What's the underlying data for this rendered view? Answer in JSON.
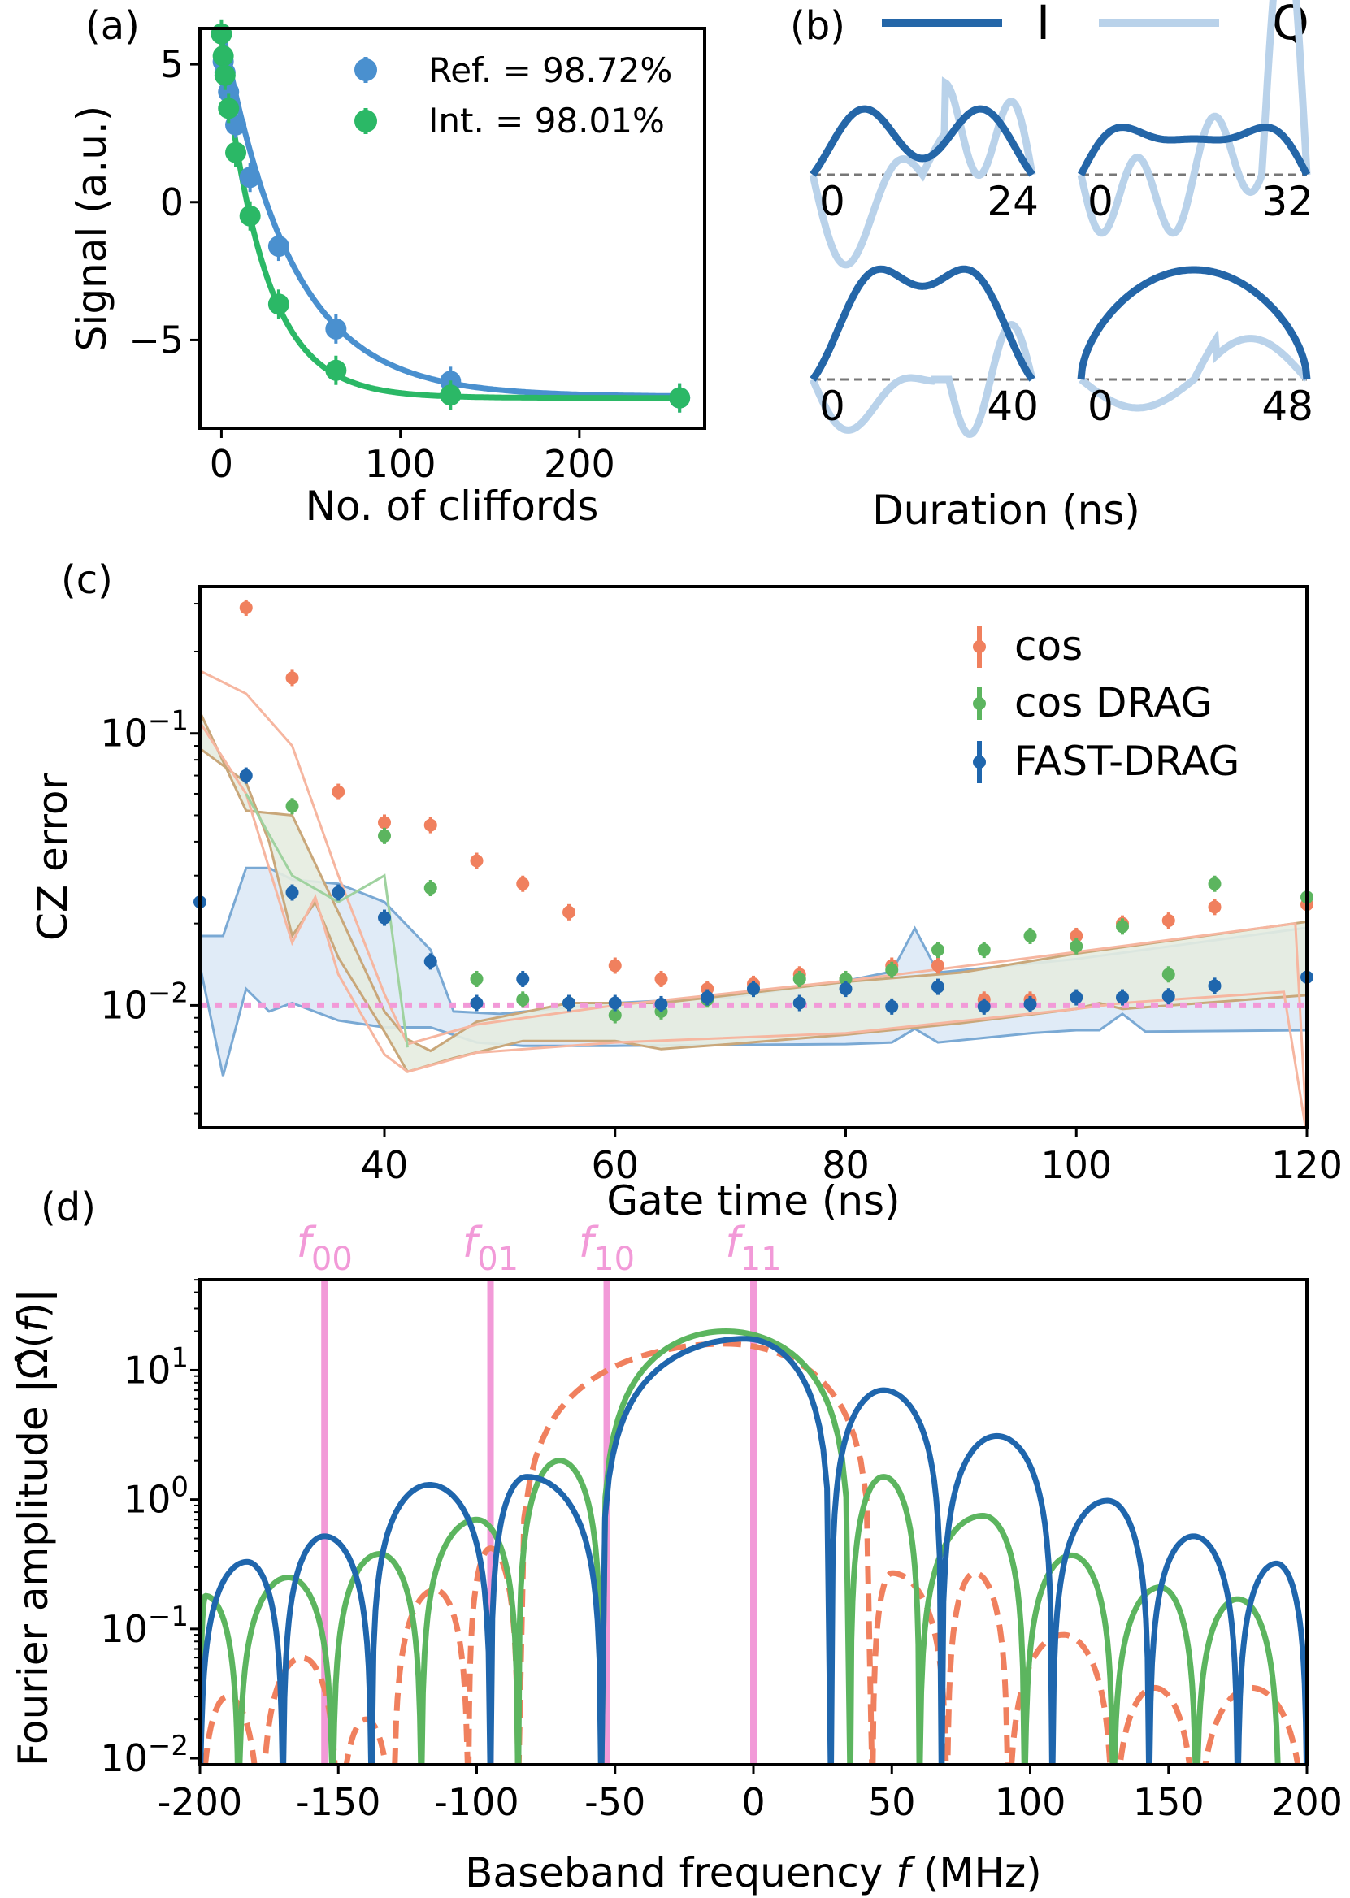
{
  "colors": {
    "ref": "#4a90cf",
    "int": "#2bb866",
    "I": "#2466a8",
    "Q": "#b9d2ea",
    "cos": "#f0805e",
    "cosdrag": "#5cb55f",
    "fast": "#1f66ad",
    "threshold": "#f29ad8",
    "freqline": "#f29ad8",
    "fill_blue": "#dde9f6",
    "fill_green": "#e6ece0"
  },
  "chart_data": [
    {
      "panel": "(a)",
      "type": "scatter",
      "xlabel": "No. of cliffords",
      "ylabel": "Signal (a.u.)",
      "xlim": [
        -12,
        270
      ],
      "ylim": [
        -8.2,
        6.3
      ],
      "xticks": [
        0,
        100,
        200
      ],
      "xtick_labels": [
        "0",
        "100",
        "200"
      ],
      "yticks": [
        5,
        0,
        -5
      ],
      "ytick_labels": [
        "5",
        "0",
        "−5"
      ],
      "legend": "top-right",
      "series": [
        {
          "name": "Ref. = 98.72%",
          "x": [
            1,
            2,
            4,
            8,
            16,
            32,
            64,
            128,
            256
          ],
          "y": [
            5.1,
            4.7,
            4.0,
            2.8,
            0.9,
            -1.6,
            -4.6,
            -6.5,
            -7.1
          ],
          "fit": {
            "A": 13.5,
            "k": 0.026,
            "C": -7.05
          }
        },
        {
          "name": "Int. = 98.01%",
          "x": [
            0,
            1,
            2,
            4,
            8,
            16,
            32,
            64,
            128,
            256
          ],
          "y": [
            6.1,
            5.3,
            4.6,
            3.4,
            1.8,
            -0.5,
            -3.7,
            -6.1,
            -7.0,
            -7.1
          ],
          "fit": {
            "A": 13.1,
            "k": 0.043,
            "C": -7.1
          }
        }
      ]
    },
    {
      "panel": "(b)",
      "type": "line",
      "xlabel": "Duration (ns)",
      "legend_entries": [
        "I",
        "Q"
      ],
      "subplots": [
        {
          "duration": 24,
          "start_label": "0",
          "end_label": "24"
        },
        {
          "duration": 32,
          "start_label": "0",
          "end_label": "32"
        },
        {
          "duration": 40,
          "start_label": "0",
          "end_label": "40"
        },
        {
          "duration": 48,
          "start_label": "0",
          "end_label": "48"
        }
      ]
    },
    {
      "panel": "(c)",
      "type": "scatter",
      "xlabel": "Gate time (ns)",
      "ylabel": "CZ error",
      "xlim": [
        24,
        120
      ],
      "ylim_log": [
        -2.45,
        -0.46
      ],
      "xticks": [
        40,
        60,
        80,
        100,
        120
      ],
      "xtick_labels": [
        "40",
        "60",
        "80",
        "100",
        "120"
      ],
      "yticks_log": [
        -1,
        -2
      ],
      "threshold": 0.01,
      "legend": "top-right",
      "series": [
        {
          "name": "cos",
          "x": [
            28,
            32,
            36,
            40,
            44,
            48,
            52,
            56,
            60,
            64,
            68,
            72,
            76,
            80,
            84,
            88,
            92,
            96,
            100,
            104,
            108,
            112,
            120
          ],
          "y": [
            0.29,
            0.16,
            0.061,
            0.047,
            0.046,
            0.034,
            0.028,
            0.022,
            0.014,
            0.0125,
            0.0115,
            0.012,
            0.013,
            0.0125,
            0.014,
            0.014,
            0.0105,
            0.0105,
            0.018,
            0.02,
            0.0205,
            0.023,
            0.0235
          ]
        },
        {
          "name": "cos DRAG",
          "x": [
            32,
            40,
            44,
            48,
            52,
            56,
            60,
            64,
            68,
            72,
            76,
            80,
            84,
            88,
            92,
            96,
            100,
            104,
            108,
            112,
            120
          ],
          "y": [
            0.054,
            0.042,
            0.027,
            0.0125,
            0.0105,
            0.0102,
            0.0092,
            0.0095,
            0.0105,
            0.0115,
            0.0125,
            0.0125,
            0.0135,
            0.016,
            0.016,
            0.018,
            0.0165,
            0.0195,
            0.013,
            0.028,
            0.025
          ]
        },
        {
          "name": "FAST-DRAG",
          "x": [
            24,
            28,
            32,
            36,
            40,
            44,
            48,
            52,
            56,
            60,
            64,
            68,
            72,
            76,
            80,
            84,
            88,
            92,
            96,
            100,
            104,
            108,
            112,
            120
          ],
          "y": [
            0.024,
            0.07,
            0.026,
            0.026,
            0.021,
            0.0145,
            0.0102,
            0.0125,
            0.0102,
            0.0102,
            0.0101,
            0.0107,
            0.0115,
            0.0102,
            0.0115,
            0.0099,
            0.0117,
            0.0099,
            0.0101,
            0.0107,
            0.0107,
            0.0108,
            0.0118,
            0.0127
          ]
        }
      ],
      "bands": [
        {
          "name": "FAST-DRAG band",
          "upper": [
            [
              24,
              0.018
            ],
            [
              26,
              0.018
            ],
            [
              28,
              0.032
            ],
            [
              30,
              0.032
            ],
            [
              32,
              0.029
            ],
            [
              36,
              0.028
            ],
            [
              40,
              0.024
            ],
            [
              44,
              0.016
            ],
            [
              46,
              0.0095
            ],
            [
              50,
              0.0093
            ],
            [
              60,
              0.0102
            ],
            [
              70,
              0.0107
            ],
            [
              80,
              0.0123
            ],
            [
              84,
              0.0133
            ],
            [
              86,
              0.0192
            ],
            [
              88,
              0.0132
            ],
            [
              100,
              0.0148
            ],
            [
              120,
              0.0193
            ]
          ],
          "lower": [
            [
              24,
              0.014
            ],
            [
              26,
              0.0055
            ],
            [
              28,
              0.0115
            ],
            [
              30,
              0.0095
            ],
            [
              32,
              0.0102
            ],
            [
              36,
              0.0088
            ],
            [
              40,
              0.0083
            ],
            [
              44,
              0.0083
            ],
            [
              48,
              0.0073
            ],
            [
              52,
              0.0071
            ],
            [
              60,
              0.0071
            ],
            [
              80,
              0.0072
            ],
            [
              84,
              0.0073
            ],
            [
              86,
              0.0082
            ],
            [
              88,
              0.0073
            ],
            [
              96,
              0.0079
            ],
            [
              100,
              0.0081
            ],
            [
              102,
              0.0081
            ],
            [
              104,
              0.0093
            ],
            [
              106,
              0.008
            ],
            [
              120,
              0.0081
            ]
          ]
        },
        {
          "name": "cos DRAG band",
          "upper": [
            [
              24,
              0.12
            ],
            [
              28,
              0.052
            ],
            [
              32,
              0.05
            ],
            [
              36,
              0.022
            ],
            [
              40,
              0.0095
            ],
            [
              42,
              0.0075
            ],
            [
              44,
              0.0068
            ],
            [
              48,
              0.0087
            ],
            [
              56,
              0.0102
            ],
            [
              64,
              0.0102
            ],
            [
              80,
              0.0122
            ],
            [
              90,
              0.0132
            ],
            [
              100,
              0.0155
            ],
            [
              120,
              0.0203
            ]
          ],
          "lower": [
            [
              24,
              0.088
            ],
            [
              28,
              0.066
            ],
            [
              30,
              0.04
            ],
            [
              32,
              0.018
            ],
            [
              34,
              0.024
            ],
            [
              36,
              0.015
            ],
            [
              40,
              0.008
            ],
            [
              42,
              0.0057
            ],
            [
              46,
              0.0064
            ],
            [
              52,
              0.0074
            ],
            [
              60,
              0.0074
            ],
            [
              64,
              0.0069
            ],
            [
              70,
              0.0072
            ],
            [
              80,
              0.0078
            ],
            [
              90,
              0.0086
            ],
            [
              100,
              0.0097
            ],
            [
              102,
              0.0102
            ],
            [
              104,
              0.0097
            ],
            [
              120,
              0.0109
            ]
          ]
        }
      ],
      "extra_lines": [
        {
          "name": "cos band upper",
          "pts": [
            [
              24,
              0.17
            ],
            [
              28,
              0.14
            ],
            [
              32,
              0.09
            ],
            [
              36,
              0.03
            ],
            [
              40,
              0.011
            ],
            [
              42,
              0.0072
            ],
            [
              48,
              0.0085
            ],
            [
              60,
              0.01
            ],
            [
              80,
              0.0123
            ],
            [
              100,
              0.0157
            ],
            [
              119,
              0.02
            ],
            [
              120,
              0.0033
            ]
          ]
        },
        {
          "name": "cos band lower",
          "pts": [
            [
              24,
              0.11
            ],
            [
              28,
              0.06
            ],
            [
              32,
              0.017
            ],
            [
              34,
              0.025
            ],
            [
              36,
              0.013
            ],
            [
              40,
              0.0066
            ],
            [
              42,
              0.0057
            ],
            [
              48,
              0.0067
            ],
            [
              60,
              0.0073
            ],
            [
              80,
              0.0079
            ],
            [
              100,
              0.0097
            ],
            [
              104,
              0.0102
            ],
            [
              118,
              0.0112
            ],
            [
              120,
              0.0033
            ]
          ]
        },
        {
          "name": "cos DRAG spike",
          "pts": [
            [
              28,
              0.06
            ],
            [
              32,
              0.03
            ],
            [
              36,
              0.024
            ],
            [
              40,
              0.03
            ],
            [
              42,
              0.007
            ]
          ]
        }
      ]
    },
    {
      "panel": "(d)",
      "type": "line",
      "xlabel": "Baseband frequency f (MHz)",
      "ylabel": "Fourier amplitude |Ω̂(f)|",
      "xlim": [
        -200,
        200
      ],
      "ylim_log": [
        -2.05,
        1.7
      ],
      "xticks": [
        -200,
        -150,
        -100,
        -50,
        0,
        50,
        100,
        150,
        200
      ],
      "xtick_labels": [
        "-200",
        "-150",
        "-100",
        "-50",
        "0",
        "50",
        "100",
        "150",
        "200"
      ],
      "yticks_log": [
        1,
        0,
        -1,
        -2
      ],
      "freq_markers": [
        {
          "label": "f",
          "sub": "00",
          "x": -155
        },
        {
          "label": "f",
          "sub": "01",
          "x": -95
        },
        {
          "label": "f",
          "sub": "10",
          "x": -53
        },
        {
          "label": "f",
          "sub": "11",
          "x": 0
        }
      ],
      "series": [
        {
          "name": "cos",
          "style": "dashed",
          "center": -10,
          "peaks": [
            [
              -190,
              0.03
            ],
            [
              -163,
              0.06
            ],
            [
              -115,
              0.2
            ],
            [
              -95,
              0.42
            ],
            [
              -10,
              16
            ],
            [
              50,
              0.27
            ],
            [
              80,
              0.27
            ],
            [
              112,
              0.09
            ],
            [
              145,
              0.035
            ],
            [
              180,
              0.035
            ]
          ],
          "zeros": [
            -200,
            -178,
            -150,
            -130,
            -103,
            -85,
            43,
            70,
            92,
            130,
            160,
            200
          ]
        },
        {
          "name": "cos DRAG",
          "style": "solid",
          "center": -10,
          "peaks": [
            [
              -198,
              0.18
            ],
            [
              -168,
              0.25
            ],
            [
              -135,
              0.38
            ],
            [
              -100,
              0.7
            ],
            [
              -70,
              2.0
            ],
            [
              -10,
              20
            ],
            [
              47,
              1.5
            ],
            [
              83,
              0.75
            ],
            [
              115,
              0.37
            ],
            [
              147,
              0.21
            ],
            [
              175,
              0.17
            ],
            [
              200,
              0.1
            ]
          ],
          "zeros": [
            -200,
            -186,
            -152,
            -120,
            -85,
            -55,
            35,
            60,
            98,
            130,
            160,
            190
          ]
        },
        {
          "name": "FAST-DRAG",
          "style": "solid",
          "center": -3,
          "peaks": [
            [
              -183,
              0.33
            ],
            [
              -155,
              0.52
            ],
            [
              -117,
              1.3
            ],
            [
              -82,
              1.5
            ],
            [
              -3,
              17.5
            ],
            [
              47,
              7.0
            ],
            [
              88,
              3.1
            ],
            [
              128,
              0.98
            ],
            [
              159,
              0.52
            ],
            [
              189,
              0.32
            ]
          ],
          "zeros": [
            -200,
            -170,
            -138,
            -95,
            -55,
            28,
            68,
            108,
            143,
            175,
            200
          ]
        }
      ]
    }
  ],
  "labels": {
    "a": "(a)",
    "b": "(b)",
    "c": "(c)",
    "d": "(d)",
    "legend_a_ref": "Ref. = 98.72%",
    "legend_a_int": "Int. = 98.01%",
    "legend_b_I": "I",
    "legend_b_Q": "Q",
    "legend_c_cos": "cos",
    "legend_c_cosdrag": "cos DRAG",
    "legend_c_fast": "FAST-DRAG"
  }
}
